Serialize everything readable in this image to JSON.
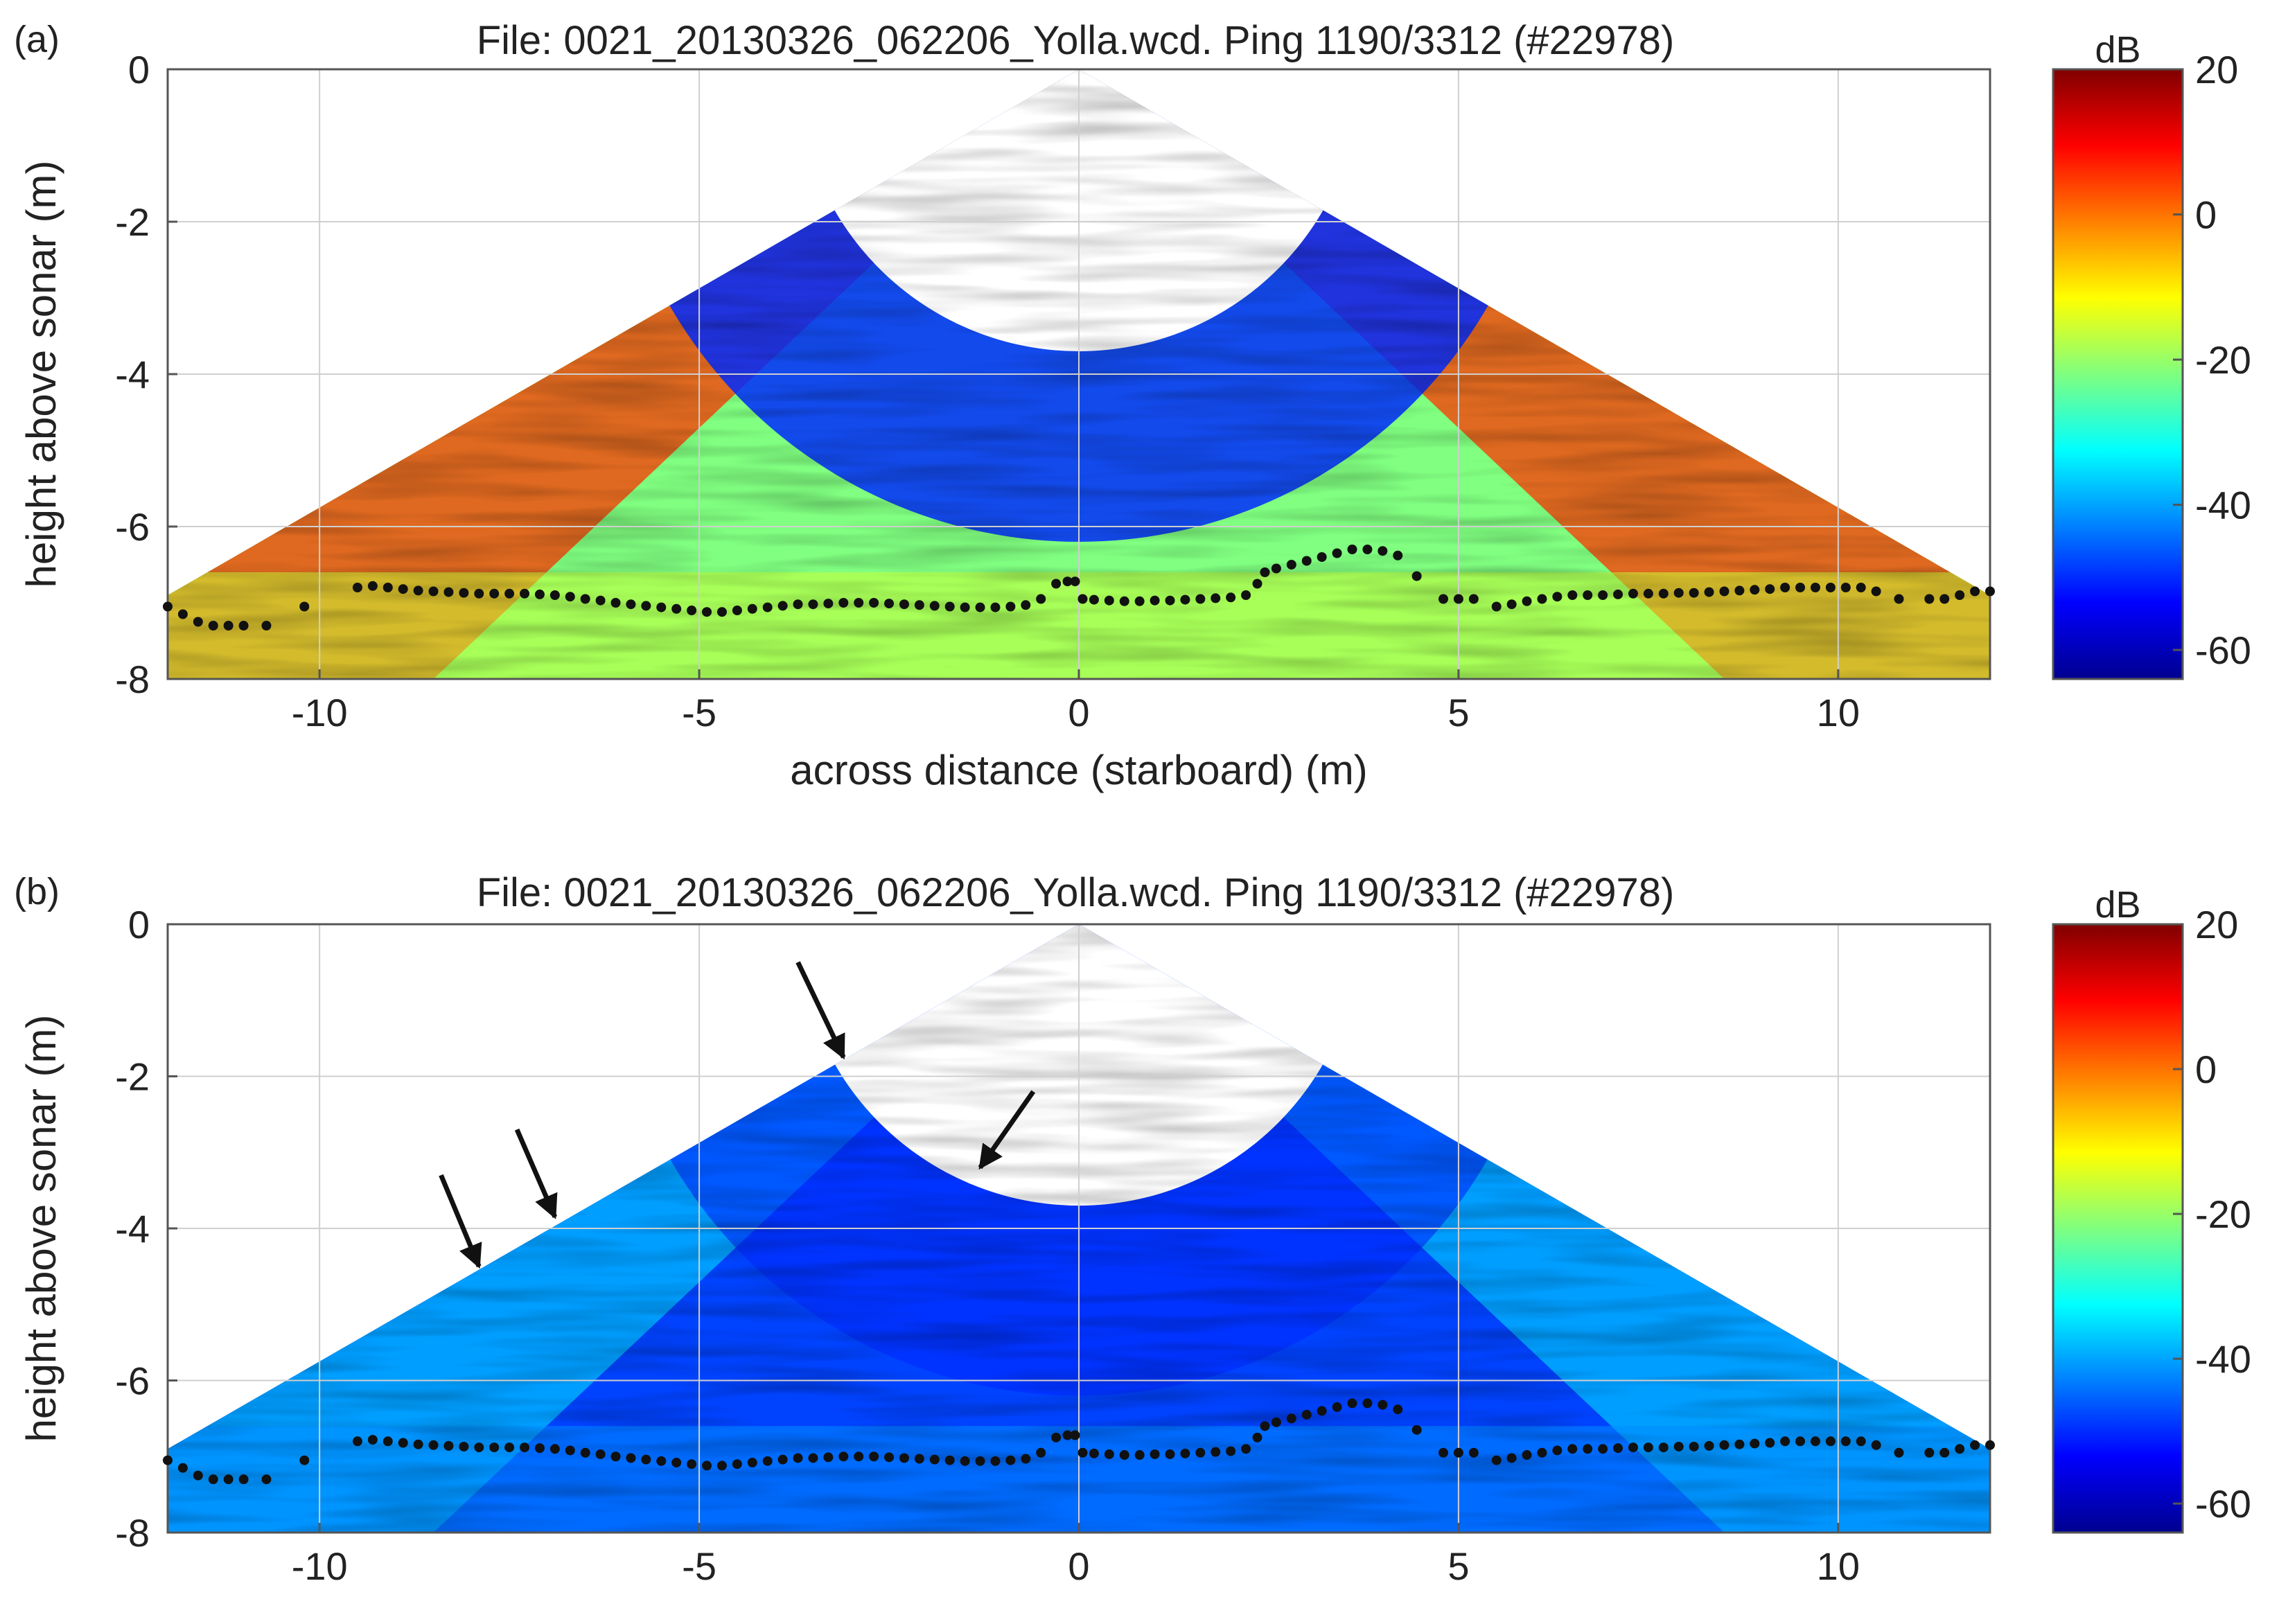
{
  "chart_data": [
    {
      "panel_label": "(a)",
      "type": "heatmap",
      "title": "File: 0021_20130326_062206_Yolla.wcd. Ping 1190/3312 (#22978)",
      "xlabel": "across distance (starboard) (m)",
      "ylabel": "height above sonar (m)",
      "xlim": [
        -12,
        12
      ],
      "ylim": [
        -8,
        0
      ],
      "xticks": [
        -10,
        -5,
        0,
        5,
        10
      ],
      "yticks": [
        0,
        -2,
        -4,
        -6,
        -8
      ],
      "grid": true,
      "colorbar": {
        "label": "dB",
        "ticks": [
          20,
          0,
          -20,
          -40,
          -60
        ],
        "range": [
          -64,
          20
        ]
      },
      "background_db": -22,
      "edge_db": 5,
      "arrows": []
    },
    {
      "panel_label": "(b)",
      "type": "heatmap",
      "title": "File: 0021_20130326_062206_Yolla.wcd. Ping 1190/3312 (#22978)",
      "xlabel": "",
      "ylabel": "height above sonar (m)",
      "xlim": [
        -12,
        12
      ],
      "ylim": [
        -8,
        0
      ],
      "xticks": [
        -10,
        -5,
        0,
        5,
        10
      ],
      "yticks": [
        0,
        -2,
        -4,
        -6,
        -8
      ],
      "grid": true,
      "colorbar": {
        "label": "dB",
        "ticks": [
          20,
          0,
          -20,
          -40,
          -60
        ],
        "range": [
          -64,
          20
        ]
      },
      "background_db": -48,
      "edge_db": -38,
      "arrows": [
        {
          "tail": [
            -3.7,
            -0.5
          ],
          "head": [
            -3.1,
            -1.75
          ]
        },
        {
          "tail": [
            -0.6,
            -2.2
          ],
          "head": [
            -1.3,
            -3.2
          ]
        },
        {
          "tail": [
            -7.4,
            -2.7
          ],
          "head": [
            -6.9,
            -3.85
          ]
        },
        {
          "tail": [
            -8.4,
            -3.3
          ],
          "head": [
            -7.9,
            -4.5
          ]
        }
      ]
    }
  ],
  "bottom_detections": {
    "x": [
      -12.0,
      -11.8,
      -11.6,
      -11.4,
      -11.2,
      -11.0,
      -10.7,
      -10.2,
      -9.5,
      -9.3,
      -9.1,
      -8.9,
      -8.7,
      -8.5,
      -8.3,
      -8.1,
      -7.9,
      -7.7,
      -7.5,
      -7.3,
      -7.1,
      -6.9,
      -6.7,
      -6.5,
      -6.3,
      -6.1,
      -5.9,
      -5.7,
      -5.5,
      -5.3,
      -5.1,
      -4.9,
      -4.7,
      -4.5,
      -4.3,
      -4.1,
      -3.9,
      -3.7,
      -3.5,
      -3.3,
      -3.1,
      -2.9,
      -2.7,
      -2.5,
      -2.3,
      -2.1,
      -1.9,
      -1.7,
      -1.5,
      -1.3,
      -1.1,
      -0.9,
      -0.7,
      -0.5,
      -0.3,
      -0.15,
      -0.05,
      0.05,
      0.2,
      0.4,
      0.6,
      0.8,
      1.0,
      1.2,
      1.4,
      1.6,
      1.8,
      2.0,
      2.2,
      2.35,
      2.45,
      2.6,
      2.8,
      3.0,
      3.2,
      3.4,
      3.6,
      3.8,
      4.0,
      4.2,
      4.45,
      4.8,
      5.0,
      5.2,
      5.5,
      5.7,
      5.9,
      6.1,
      6.3,
      6.5,
      6.7,
      6.9,
      7.1,
      7.3,
      7.5,
      7.7,
      7.9,
      8.1,
      8.3,
      8.5,
      8.7,
      8.9,
      9.1,
      9.3,
      9.5,
      9.7,
      9.9,
      10.1,
      10.3,
      10.5,
      10.8,
      11.2,
      11.4,
      11.6,
      11.8,
      12.0
    ],
    "y": [
      -7.05,
      -7.15,
      -7.25,
      -7.3,
      -7.3,
      -7.3,
      -7.3,
      -7.05,
      -6.8,
      -6.78,
      -6.8,
      -6.82,
      -6.84,
      -6.85,
      -6.86,
      -6.87,
      -6.88,
      -6.88,
      -6.88,
      -6.88,
      -6.89,
      -6.9,
      -6.92,
      -6.95,
      -6.97,
      -7.0,
      -7.02,
      -7.04,
      -7.06,
      -7.08,
      -7.1,
      -7.12,
      -7.12,
      -7.1,
      -7.08,
      -7.06,
      -7.04,
      -7.02,
      -7.02,
      -7.01,
      -7.0,
      -7.0,
      -7.0,
      -7.01,
      -7.02,
      -7.03,
      -7.04,
      -7.05,
      -7.06,
      -7.06,
      -7.06,
      -7.05,
      -7.03,
      -6.95,
      -6.75,
      -6.72,
      -6.72,
      -6.95,
      -6.96,
      -6.97,
      -6.98,
      -6.98,
      -6.97,
      -6.97,
      -6.96,
      -6.95,
      -6.94,
      -6.93,
      -6.9,
      -6.75,
      -6.6,
      -6.55,
      -6.5,
      -6.45,
      -6.4,
      -6.35,
      -6.3,
      -6.3,
      -6.32,
      -6.38,
      -6.65,
      -6.95,
      -6.95,
      -6.95,
      -7.05,
      -7.02,
      -6.98,
      -6.95,
      -6.92,
      -6.9,
      -6.9,
      -6.9,
      -6.89,
      -6.88,
      -6.88,
      -6.88,
      -6.87,
      -6.87,
      -6.86,
      -6.85,
      -6.84,
      -6.83,
      -6.82,
      -6.8,
      -6.8,
      -6.8,
      -6.8,
      -6.8,
      -6.8,
      -6.85,
      -6.95,
      -6.95,
      -6.95,
      -6.9,
      -6.85,
      -6.85
    ]
  }
}
